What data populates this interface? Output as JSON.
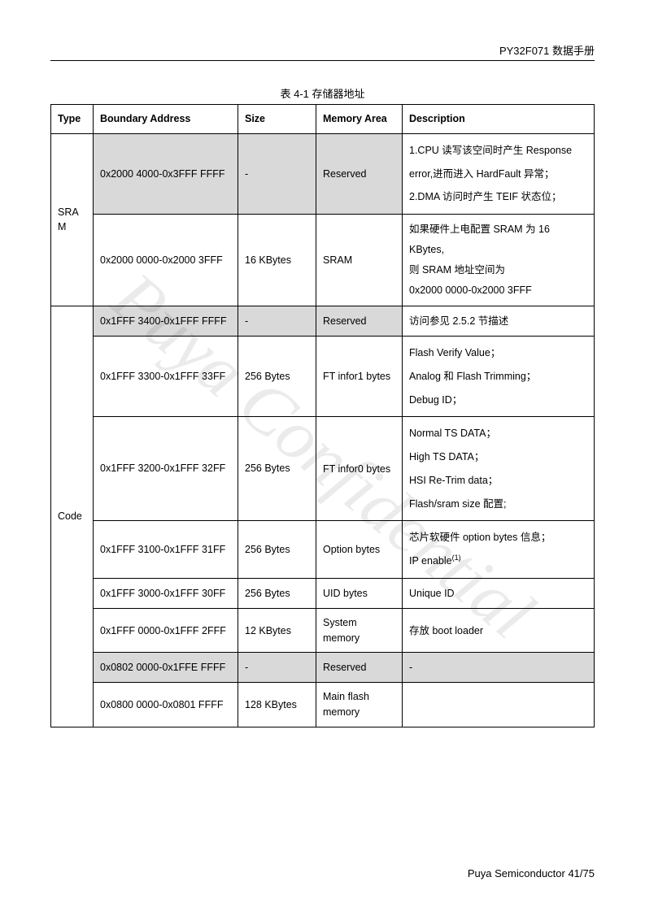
{
  "header": {
    "doc_title": "PY32F071 数据手册"
  },
  "caption": "表 4-1 存储器地址",
  "columns": {
    "type": "Type",
    "addr": "Boundary Address",
    "size": "Size",
    "mem": "Memory Area",
    "desc": "Description"
  },
  "types": {
    "sram": "SRAM",
    "code": "Code"
  },
  "rows": {
    "r1": {
      "addr": "0x2000 4000-0x3FFF FFFF",
      "size": "-",
      "mem": "Reserved",
      "desc": "1.CPU 读写该空间时产生 Response error,进而进入 HardFault 异常；\n2.DMA 访问时产生 TEIF 状态位；"
    },
    "r2": {
      "addr": "0x2000 0000-0x2000 3FFF",
      "size": "16 KBytes",
      "mem": "SRAM",
      "desc": "如果硬件上电配置 SRAM 为 16 KBytes,\n则 SRAM 地址空间为\n0x2000 0000-0x2000 3FFF"
    },
    "r3": {
      "addr": "0x1FFF 3400-0x1FFF FFFF",
      "size": "-",
      "mem": "Reserved",
      "desc": "访问参见 2.5.2 节描述"
    },
    "r4": {
      "addr": "0x1FFF 3300-0x1FFF 33FF",
      "size": "256 Bytes",
      "mem": "FT infor1 bytes",
      "desc": "Flash Verify Value；\nAnalog 和 Flash Trimming；\nDebug ID；"
    },
    "r5": {
      "addr": "0x1FFF 3200-0x1FFF 32FF",
      "size": "256 Bytes",
      "mem": "FT infor0 bytes",
      "desc": "Normal TS DATA；\nHigh TS DATA；\nHSI Re-Trim data；\nFlash/sram size 配置;"
    },
    "r6": {
      "addr": "0x1FFF 3100-0x1FFF 31FF",
      "size": "256 Bytes",
      "mem": "Option bytes",
      "desc_pre": "芯片软硬件 option bytes 信息；\nIP enable",
      "sup": "(1)"
    },
    "r7": {
      "addr": "0x1FFF 3000-0x1FFF 30FF",
      "size": "256 Bytes",
      "mem": "UID bytes",
      "desc": "Unique ID"
    },
    "r8": {
      "addr": "0x1FFF 0000-0x1FFF 2FFF",
      "size": "12 KBytes",
      "mem": "System memory",
      "desc": "存放 boot loader"
    },
    "r9": {
      "addr": "0x0802 0000-0x1FFE FFFF",
      "size": "-",
      "mem": "Reserved",
      "desc": "-"
    },
    "r10": {
      "addr": "0x0800 0000-0x0801 FFFF",
      "size": "128 KBytes",
      "mem": "Main flash memory",
      "desc": ""
    }
  },
  "footer": {
    "text": "Puya Semiconductor 41/75"
  },
  "watermark": "Puya Confidential"
}
